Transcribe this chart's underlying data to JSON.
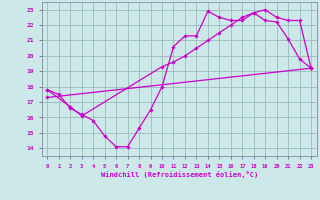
{
  "xlabel": "Windchill (Refroidissement éolien,°C)",
  "xlim": [
    -0.5,
    23.5
  ],
  "ylim": [
    13.5,
    23.5
  ],
  "yticks": [
    14,
    15,
    16,
    17,
    18,
    19,
    20,
    21,
    22,
    23
  ],
  "xticks": [
    0,
    1,
    2,
    3,
    4,
    5,
    6,
    7,
    8,
    9,
    10,
    11,
    12,
    13,
    14,
    15,
    16,
    17,
    18,
    19,
    20,
    21,
    22,
    23
  ],
  "background_color": "#cce8e8",
  "line_color": "#cc00cc",
  "grid_color": "#99bbbb",
  "line1_x": [
    0,
    1,
    2,
    3,
    4,
    5,
    6,
    7,
    8,
    9,
    10,
    11,
    12,
    13,
    14,
    15,
    16,
    17,
    18,
    19,
    20,
    21,
    22,
    23
  ],
  "line1_y": [
    17.8,
    17.5,
    16.6,
    16.2,
    15.8,
    14.8,
    14.1,
    14.1,
    15.3,
    16.5,
    18.0,
    20.6,
    21.3,
    21.3,
    22.9,
    22.5,
    22.3,
    22.3,
    22.8,
    22.3,
    22.2,
    21.1,
    19.8,
    19.2
  ],
  "line2_x": [
    0,
    2,
    3,
    10,
    11,
    12,
    13,
    14,
    15,
    16,
    17,
    18,
    19,
    20,
    21,
    22,
    23
  ],
  "line2_y": [
    17.8,
    16.7,
    16.1,
    19.3,
    19.6,
    20.0,
    20.5,
    21.0,
    21.5,
    22.0,
    22.5,
    22.8,
    23.0,
    22.5,
    22.3,
    22.3,
    19.2
  ],
  "line3_x": [
    0,
    23
  ],
  "line3_y": [
    17.3,
    19.2
  ]
}
